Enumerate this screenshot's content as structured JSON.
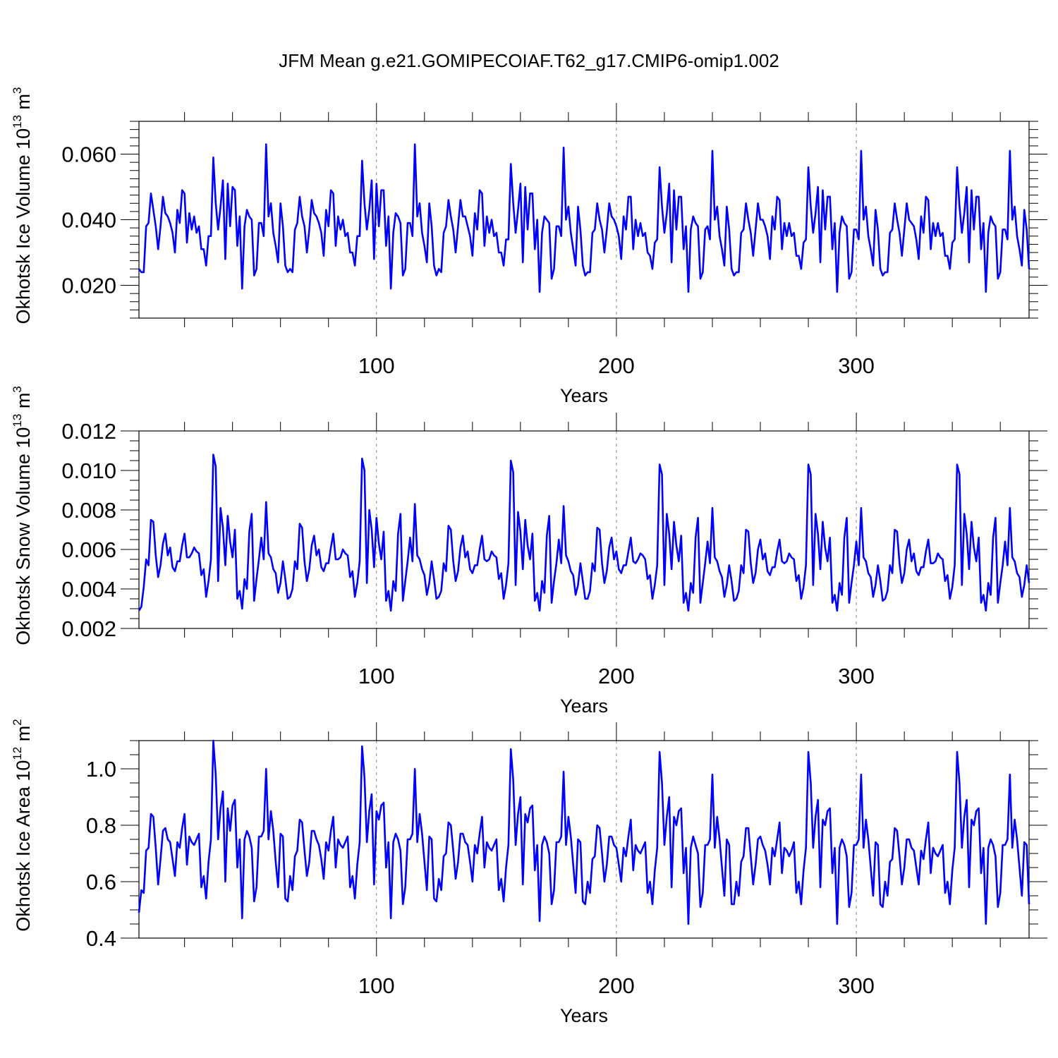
{
  "title": "JFM Mean g.e21.GOMIPECOIAF.T62_g17.CMIP6-omip1.002",
  "series_color": "#0000ff",
  "chart_data": [
    {
      "type": "line",
      "name": "ice-volume",
      "title": "",
      "xlabel": "Years",
      "ylabel_main": "Okhotsk Ice Volume 10",
      "ylabel_exp": "13",
      "ylabel_tail": " m",
      "ylabel_unit_exp": "3",
      "xlim": [
        1,
        372
      ],
      "ylim": [
        0.01,
        0.07
      ],
      "xticks": [
        100,
        200,
        300
      ],
      "xtick_labels": [
        "100",
        "200",
        "300"
      ],
      "yticks": [
        0.02,
        0.04,
        0.06
      ],
      "ytick_labels": [
        "0.020",
        "0.040",
        "0.060"
      ],
      "values": [
        0.025,
        0.024,
        0.024,
        0.038,
        0.039,
        0.048,
        0.043,
        0.038,
        0.031,
        0.038,
        0.047,
        0.042,
        0.041,
        0.039,
        0.036,
        0.03,
        0.043,
        0.039,
        0.049,
        0.048,
        0.033,
        0.042,
        0.037,
        0.041,
        0.036,
        0.038,
        0.031,
        0.031,
        0.026,
        0.035,
        0.035,
        0.059,
        0.045,
        0.037,
        0.044,
        0.052,
        0.028,
        0.051,
        0.038,
        0.05,
        0.049,
        0.032,
        0.041,
        0.019,
        0.038,
        0.043,
        0.041,
        0.04,
        0.023,
        0.025,
        0.039,
        0.039,
        0.035,
        0.063,
        0.041,
        0.045,
        0.036,
        0.032,
        0.027,
        0.045,
        0.038,
        0.026,
        0.024,
        0.025,
        0.024,
        0.037,
        0.039,
        0.047,
        0.041,
        0.038,
        0.03,
        0.037,
        0.046,
        0.042,
        0.041,
        0.039,
        0.036,
        0.029,
        0.043,
        0.038,
        0.049,
        0.048,
        0.032,
        0.041,
        0.037,
        0.04,
        0.035,
        0.036,
        0.03,
        0.03,
        0.026,
        0.035,
        0.035,
        0.058,
        0.045,
        0.037,
        0.043,
        0.052,
        0.028,
        0.051,
        0.038,
        0.049,
        0.049,
        0.032,
        0.041,
        0.019,
        0.036,
        0.042,
        0.041,
        0.039,
        0.023,
        0.025,
        0.039,
        0.039,
        0.035,
        0.063,
        0.041,
        0.045,
        0.036,
        0.032,
        0.027,
        0.045,
        0.038,
        0.026,
        0.023,
        0.025,
        0.024,
        0.036,
        0.038,
        0.046,
        0.041,
        0.037,
        0.03,
        0.038,
        0.046,
        0.041,
        0.041,
        0.038,
        0.035,
        0.029,
        0.042,
        0.037,
        0.049,
        0.048,
        0.032,
        0.041,
        0.036,
        0.04,
        0.035,
        0.036,
        0.03,
        0.03,
        0.026,
        0.034,
        0.034,
        0.057,
        0.045,
        0.036,
        0.043,
        0.051,
        0.027,
        0.05,
        0.037,
        0.048,
        0.048,
        0.031,
        0.04,
        0.018,
        0.036,
        0.041,
        0.04,
        0.039,
        0.022,
        0.025,
        0.038,
        0.038,
        0.035,
        0.062,
        0.04,
        0.044,
        0.036,
        0.031,
        0.026,
        0.044,
        0.037,
        0.026,
        0.023,
        0.024,
        0.024,
        0.036,
        0.037,
        0.045,
        0.04,
        0.037,
        0.03,
        0.037,
        0.045,
        0.041,
        0.04,
        0.038,
        0.035,
        0.028,
        0.041,
        0.037,
        0.047,
        0.047,
        0.031,
        0.04,
        0.035,
        0.039,
        0.035,
        0.036,
        0.03,
        0.029,
        0.025,
        0.033,
        0.034,
        0.056,
        0.044,
        0.036,
        0.042,
        0.051,
        0.027,
        0.049,
        0.037,
        0.047,
        0.047,
        0.031,
        0.038,
        0.018,
        0.037,
        0.041,
        0.039,
        0.038,
        0.022,
        0.024,
        0.037,
        0.038,
        0.034,
        0.061,
        0.04,
        0.044,
        0.035,
        0.031,
        0.026,
        0.044,
        0.037,
        0.025,
        0.023,
        0.024,
        0.024,
        0.036,
        0.037,
        0.045,
        0.04,
        0.036,
        0.029,
        0.037,
        0.045,
        0.04,
        0.04,
        0.038,
        0.035,
        0.028,
        0.041,
        0.037,
        0.047,
        0.046,
        0.031,
        0.039,
        0.035,
        0.039,
        0.035,
        0.036,
        0.029,
        0.029,
        0.025,
        0.033,
        0.034,
        0.056,
        0.044,
        0.036,
        0.042,
        0.05,
        0.027,
        0.049,
        0.037,
        0.047,
        0.047,
        0.031,
        0.039,
        0.018,
        0.036,
        0.041,
        0.039,
        0.038,
        0.022,
        0.024,
        0.037,
        0.037,
        0.034,
        0.061,
        0.04,
        0.044,
        0.035,
        0.031,
        0.026,
        0.043,
        0.037,
        0.025,
        0.023,
        0.024,
        0.024,
        0.036,
        0.037,
        0.045,
        0.04,
        0.036,
        0.029,
        0.037,
        0.045,
        0.04,
        0.039,
        0.038,
        0.034,
        0.028,
        0.041,
        0.036,
        0.047,
        0.046,
        0.031,
        0.039,
        0.035,
        0.039,
        0.035,
        0.036,
        0.029,
        0.029,
        0.025,
        0.033,
        0.034,
        0.056,
        0.044,
        0.036,
        0.042,
        0.05,
        0.027,
        0.049,
        0.037,
        0.047,
        0.047,
        0.031,
        0.039,
        0.018,
        0.036,
        0.041,
        0.039,
        0.038,
        0.022,
        0.024,
        0.037,
        0.037,
        0.034,
        0.061,
        0.04,
        0.044,
        0.035,
        0.031,
        0.026,
        0.043,
        0.037,
        0.025
      ]
    },
    {
      "type": "line",
      "name": "snow-volume",
      "title": "",
      "xlabel": "Years",
      "ylabel_main": "Okhotsk Snow Volume 10",
      "ylabel_exp": "13",
      "ylabel_tail": " m",
      "ylabel_unit_exp": "3",
      "xlim": [
        1,
        372
      ],
      "ylim": [
        0.002,
        0.012
      ],
      "xticks": [
        100,
        200,
        300
      ],
      "xtick_labels": [
        "100",
        "200",
        "300"
      ],
      "yticks": [
        0.002,
        0.004,
        0.006,
        0.008,
        0.01,
        0.012
      ],
      "ytick_labels": [
        "0.002",
        "0.004",
        "0.006",
        "0.008",
        "0.010",
        "0.012"
      ],
      "values": [
        0.0029,
        0.0031,
        0.0041,
        0.0055,
        0.0052,
        0.0075,
        0.0074,
        0.0057,
        0.0046,
        0.0052,
        0.0063,
        0.0068,
        0.0057,
        0.0061,
        0.0051,
        0.0049,
        0.0054,
        0.0054,
        0.0062,
        0.0068,
        0.0056,
        0.0056,
        0.0058,
        0.0061,
        0.0059,
        0.0058,
        0.0047,
        0.005,
        0.0036,
        0.0044,
        0.0055,
        0.0108,
        0.0102,
        0.0044,
        0.0081,
        0.0071,
        0.0052,
        0.0077,
        0.0064,
        0.0056,
        0.007,
        0.0035,
        0.0039,
        0.003,
        0.0045,
        0.004,
        0.0069,
        0.0078,
        0.0034,
        0.0045,
        0.0055,
        0.0066,
        0.0055,
        0.0084,
        0.0058,
        0.0056,
        0.005,
        0.0048,
        0.0038,
        0.0043,
        0.0054,
        0.0045,
        0.0035,
        0.0036,
        0.004,
        0.0054,
        0.005,
        0.0073,
        0.0071,
        0.0054,
        0.0044,
        0.005,
        0.0062,
        0.0067,
        0.0057,
        0.006,
        0.0051,
        0.0049,
        0.0053,
        0.0053,
        0.0061,
        0.0068,
        0.0055,
        0.0055,
        0.0056,
        0.006,
        0.0058,
        0.0057,
        0.0046,
        0.0049,
        0.0036,
        0.0043,
        0.0054,
        0.0106,
        0.01,
        0.0043,
        0.008,
        0.007,
        0.0051,
        0.0076,
        0.0063,
        0.0055,
        0.0069,
        0.0034,
        0.0039,
        0.0029,
        0.0044,
        0.0039,
        0.0068,
        0.0078,
        0.0034,
        0.0044,
        0.0054,
        0.0066,
        0.0054,
        0.0083,
        0.0057,
        0.0055,
        0.005,
        0.0047,
        0.0037,
        0.0043,
        0.0054,
        0.0045,
        0.0035,
        0.0036,
        0.0039,
        0.0053,
        0.0049,
        0.0072,
        0.007,
        0.0054,
        0.0044,
        0.0049,
        0.0061,
        0.0067,
        0.0056,
        0.0059,
        0.005,
        0.0048,
        0.0052,
        0.0052,
        0.006,
        0.0067,
        0.0055,
        0.0054,
        0.0055,
        0.0059,
        0.0057,
        0.0056,
        0.0045,
        0.0048,
        0.0035,
        0.0042,
        0.0053,
        0.0105,
        0.0099,
        0.0042,
        0.0079,
        0.0069,
        0.005,
        0.0075,
        0.0062,
        0.0055,
        0.0068,
        0.0034,
        0.0038,
        0.0029,
        0.0044,
        0.0038,
        0.0067,
        0.0077,
        0.0033,
        0.0044,
        0.0053,
        0.0065,
        0.0053,
        0.0082,
        0.0057,
        0.0054,
        0.0049,
        0.0047,
        0.0037,
        0.0042,
        0.0053,
        0.0044,
        0.0035,
        0.0035,
        0.0039,
        0.0053,
        0.0049,
        0.0071,
        0.007,
        0.0053,
        0.0043,
        0.0049,
        0.0061,
        0.0066,
        0.0055,
        0.0059,
        0.005,
        0.0048,
        0.0052,
        0.0052,
        0.0059,
        0.0066,
        0.0054,
        0.0053,
        0.0055,
        0.0058,
        0.0057,
        0.0055,
        0.0045,
        0.0047,
        0.0035,
        0.0042,
        0.0052,
        0.0103,
        0.0098,
        0.0042,
        0.0078,
        0.0068,
        0.005,
        0.0074,
        0.0062,
        0.0054,
        0.0067,
        0.0033,
        0.0038,
        0.0029,
        0.0043,
        0.0038,
        0.0066,
        0.0076,
        0.0033,
        0.0043,
        0.0053,
        0.0064,
        0.0053,
        0.0081,
        0.0056,
        0.0054,
        0.0049,
        0.0046,
        0.0036,
        0.0042,
        0.0052,
        0.0044,
        0.0034,
        0.0035,
        0.0039,
        0.0052,
        0.0048,
        0.007,
        0.0069,
        0.0053,
        0.0043,
        0.0048,
        0.006,
        0.0065,
        0.0055,
        0.0058,
        0.0049,
        0.0047,
        0.0051,
        0.0051,
        0.0059,
        0.0065,
        0.0054,
        0.0053,
        0.0054,
        0.0058,
        0.0056,
        0.0055,
        0.0044,
        0.0047,
        0.0035,
        0.0041,
        0.0052,
        0.0103,
        0.0098,
        0.0042,
        0.0078,
        0.0068,
        0.005,
        0.0074,
        0.0061,
        0.0054,
        0.0066,
        0.0033,
        0.0037,
        0.0029,
        0.0043,
        0.0037,
        0.0066,
        0.0076,
        0.0033,
        0.0043,
        0.0052,
        0.0064,
        0.0052,
        0.0081,
        0.0056,
        0.0054,
        0.0048,
        0.0046,
        0.0036,
        0.0042,
        0.0052,
        0.0044,
        0.0034,
        0.0035,
        0.0039,
        0.0052,
        0.0048,
        0.007,
        0.0069,
        0.0053,
        0.0043,
        0.0048,
        0.006,
        0.0065,
        0.0054,
        0.0058,
        0.0049,
        0.0047,
        0.0051,
        0.0051,
        0.0059,
        0.0065,
        0.0053,
        0.0053,
        0.0054,
        0.0058,
        0.0056,
        0.0055,
        0.0044,
        0.0047,
        0.0035,
        0.0041,
        0.0052,
        0.0103,
        0.0098,
        0.0042,
        0.0078,
        0.0068,
        0.005,
        0.0074,
        0.0061,
        0.0054,
        0.0066,
        0.0033,
        0.0037,
        0.0029,
        0.0043,
        0.0037,
        0.0066,
        0.0076,
        0.0033,
        0.0043,
        0.0052,
        0.0064,
        0.0052,
        0.0081,
        0.0056,
        0.0054,
        0.0048,
        0.0046,
        0.0036,
        0.0042,
        0.0052,
        0.0043
      ]
    },
    {
      "type": "line",
      "name": "ice-area",
      "title": "",
      "xlabel": "Years",
      "ylabel_main": "Okhotsk Ice Area 10",
      "ylabel_exp": "12",
      "ylabel_tail": " m",
      "ylabel_unit_exp": "2",
      "xlim": [
        1,
        372
      ],
      "ylim": [
        0.4,
        1.1
      ],
      "xticks": [
        100,
        200,
        300
      ],
      "xtick_labels": [
        "100",
        "200",
        "300"
      ],
      "yticks": [
        0.4,
        0.6,
        0.8,
        1.0
      ],
      "ytick_labels": [
        "0.4",
        "0.6",
        "0.8",
        "1.0"
      ],
      "values": [
        0.49,
        0.57,
        0.56,
        0.71,
        0.72,
        0.84,
        0.83,
        0.72,
        0.59,
        0.68,
        0.78,
        0.79,
        0.75,
        0.74,
        0.68,
        0.62,
        0.74,
        0.72,
        0.79,
        0.84,
        0.66,
        0.76,
        0.74,
        0.73,
        0.75,
        0.77,
        0.58,
        0.62,
        0.54,
        0.67,
        0.75,
        1.1,
        0.98,
        0.75,
        0.86,
        0.92,
        0.6,
        0.86,
        0.78,
        0.87,
        0.89,
        0.65,
        0.75,
        0.47,
        0.75,
        0.78,
        0.76,
        0.72,
        0.53,
        0.58,
        0.76,
        0.76,
        0.78,
        1.0,
        0.75,
        0.85,
        0.78,
        0.67,
        0.58,
        0.77,
        0.76,
        0.54,
        0.53,
        0.62,
        0.57,
        0.69,
        0.71,
        0.82,
        0.81,
        0.71,
        0.62,
        0.67,
        0.78,
        0.78,
        0.75,
        0.73,
        0.68,
        0.61,
        0.74,
        0.71,
        0.78,
        0.83,
        0.65,
        0.75,
        0.73,
        0.72,
        0.74,
        0.76,
        0.58,
        0.62,
        0.54,
        0.66,
        0.74,
        1.08,
        0.97,
        0.74,
        0.85,
        0.91,
        0.59,
        0.85,
        0.82,
        0.87,
        0.88,
        0.65,
        0.74,
        0.47,
        0.74,
        0.77,
        0.75,
        0.71,
        0.52,
        0.58,
        0.75,
        0.75,
        0.77,
        1.0,
        0.74,
        0.84,
        0.77,
        0.67,
        0.57,
        0.76,
        0.75,
        0.54,
        0.53,
        0.61,
        0.57,
        0.69,
        0.7,
        0.81,
        0.8,
        0.71,
        0.61,
        0.67,
        0.77,
        0.77,
        0.74,
        0.73,
        0.67,
        0.6,
        0.73,
        0.7,
        0.77,
        0.83,
        0.65,
        0.74,
        0.72,
        0.71,
        0.73,
        0.75,
        0.57,
        0.61,
        0.53,
        0.65,
        0.73,
        1.07,
        0.96,
        0.73,
        0.84,
        0.9,
        0.59,
        0.84,
        0.81,
        0.86,
        0.87,
        0.64,
        0.73,
        0.46,
        0.73,
        0.76,
        0.74,
        0.7,
        0.52,
        0.57,
        0.74,
        0.74,
        0.76,
        0.99,
        0.73,
        0.83,
        0.76,
        0.66,
        0.56,
        0.75,
        0.74,
        0.53,
        0.52,
        0.6,
        0.56,
        0.68,
        0.69,
        0.8,
        0.79,
        0.7,
        0.6,
        0.66,
        0.76,
        0.76,
        0.73,
        0.72,
        0.66,
        0.6,
        0.72,
        0.69,
        0.76,
        0.82,
        0.64,
        0.73,
        0.71,
        0.7,
        0.72,
        0.74,
        0.56,
        0.6,
        0.52,
        0.64,
        0.72,
        1.06,
        0.95,
        0.73,
        0.83,
        0.9,
        0.58,
        0.83,
        0.8,
        0.85,
        0.86,
        0.63,
        0.72,
        0.45,
        0.72,
        0.76,
        0.73,
        0.7,
        0.51,
        0.56,
        0.73,
        0.73,
        0.75,
        0.98,
        0.72,
        0.83,
        0.75,
        0.65,
        0.55,
        0.75,
        0.73,
        0.52,
        0.52,
        0.6,
        0.55,
        0.67,
        0.69,
        0.79,
        0.79,
        0.69,
        0.59,
        0.66,
        0.75,
        0.76,
        0.73,
        0.71,
        0.66,
        0.59,
        0.72,
        0.69,
        0.75,
        0.81,
        0.63,
        0.72,
        0.71,
        0.69,
        0.71,
        0.74,
        0.56,
        0.6,
        0.52,
        0.64,
        0.72,
        1.06,
        0.95,
        0.72,
        0.83,
        0.89,
        0.58,
        0.82,
        0.8,
        0.85,
        0.86,
        0.63,
        0.72,
        0.45,
        0.72,
        0.75,
        0.73,
        0.69,
        0.51,
        0.56,
        0.73,
        0.73,
        0.75,
        0.98,
        0.72,
        0.82,
        0.75,
        0.65,
        0.55,
        0.74,
        0.73,
        0.52,
        0.51,
        0.6,
        0.55,
        0.67,
        0.68,
        0.79,
        0.78,
        0.69,
        0.59,
        0.65,
        0.75,
        0.75,
        0.72,
        0.71,
        0.65,
        0.59,
        0.71,
        0.68,
        0.75,
        0.81,
        0.63,
        0.72,
        0.7,
        0.69,
        0.71,
        0.73,
        0.56,
        0.6,
        0.52,
        0.64,
        0.72,
        1.06,
        0.95,
        0.72,
        0.83,
        0.89,
        0.58,
        0.82,
        0.8,
        0.85,
        0.86,
        0.63,
        0.72,
        0.45,
        0.72,
        0.75,
        0.73,
        0.69,
        0.51,
        0.56,
        0.73,
        0.73,
        0.75,
        0.98,
        0.72,
        0.82,
        0.75,
        0.65,
        0.55,
        0.74,
        0.73,
        0.52
      ]
    }
  ]
}
